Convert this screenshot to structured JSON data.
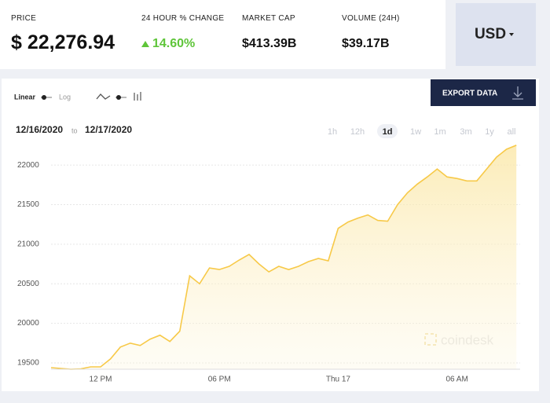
{
  "header": {
    "price_label": "PRICE",
    "price": "$ 22,276.94",
    "change_label": "24 HOUR % CHANGE",
    "change": "14.60%",
    "market_cap_label": "MARKET CAP",
    "market_cap": "$413.39B",
    "volume_label": "VOLUME (24H)",
    "volume": "$39.17B",
    "currency": "USD"
  },
  "controls": {
    "linear": "Linear",
    "log": "Log",
    "export": "EXPORT DATA",
    "date_from": "12/16/2020",
    "date_to_word": "to",
    "date_to": "12/17/2020",
    "ranges": [
      "1h",
      "12h",
      "1d",
      "1w",
      "1m",
      "3m",
      "1y",
      "all"
    ],
    "active_range": "1d"
  },
  "chart_data": {
    "type": "line",
    "watermark": "coindesk",
    "color": "#f7c948",
    "categories": [
      null,
      null,
      null,
      null,
      null,
      "12 PM",
      null,
      null,
      null,
      null,
      null,
      null,
      null,
      null,
      null,
      null,
      null,
      "06 PM",
      null,
      null,
      null,
      null,
      null,
      null,
      null,
      null,
      null,
      null,
      null,
      "Thu 17",
      null,
      null,
      null,
      null,
      null,
      null,
      null,
      null,
      null,
      null,
      null,
      "06 AM",
      null,
      null,
      null,
      null,
      null,
      null
    ],
    "values": [
      19440,
      19430,
      19420,
      19425,
      19450,
      19450,
      19550,
      19700,
      19750,
      19720,
      19800,
      19850,
      19770,
      19900,
      20600,
      20500,
      20700,
      20680,
      20720,
      20800,
      20870,
      20750,
      20650,
      20720,
      20680,
      20720,
      20780,
      20820,
      20790,
      21200,
      21280,
      21330,
      21370,
      21300,
      21290,
      21500,
      21650,
      21760,
      21850,
      21950,
      21850,
      21830,
      21800,
      21800,
      21950,
      22100,
      22200,
      22250
    ],
    "ylim": [
      19420,
      22150
    ],
    "yticks": [
      19500,
      20000,
      20500,
      21000,
      21500,
      22000
    ],
    "grid": true
  }
}
